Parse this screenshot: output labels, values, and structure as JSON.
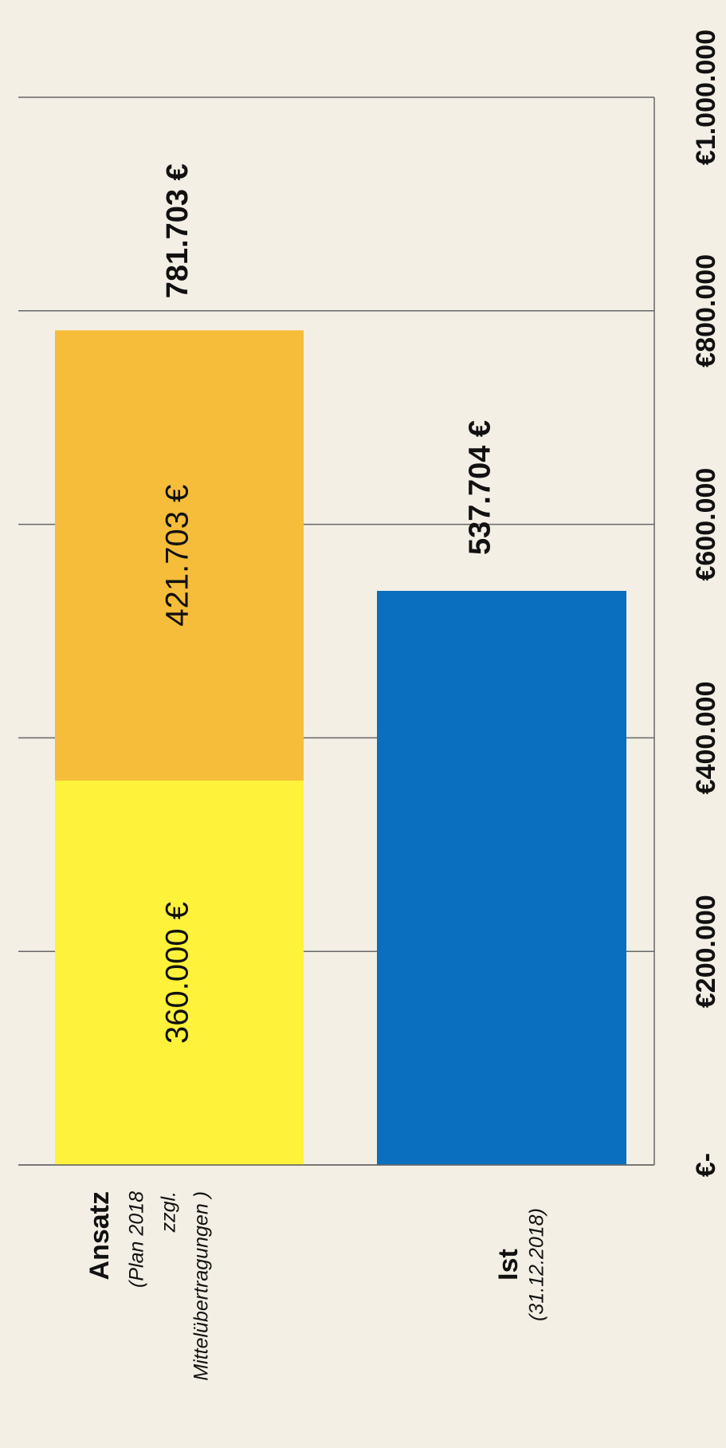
{
  "chart_data": {
    "type": "stacked_bar",
    "categories": [
      "Ansatz",
      "Ist"
    ],
    "category_sublabels": [
      [
        "(Plan 2018",
        "zzgl.",
        "Mittelübertragungen )"
      ],
      [
        "(31.12.2018)"
      ]
    ],
    "series": [
      {
        "color": "#fff23a",
        "values": [
          360000,
          null
        ],
        "value_labels": [
          "360.000 €",
          null
        ]
      },
      {
        "color": "#f6bd3a",
        "values": [
          421703,
          null
        ],
        "value_labels": [
          "421.703 €",
          null
        ]
      },
      {
        "color": "#0a6fbe",
        "values": [
          null,
          537704
        ],
        "value_labels": [
          null,
          "537.704 €"
        ]
      }
    ],
    "totals": {
      "values": [
        781703,
        null
      ],
      "value_labels": [
        "781.703 €",
        null
      ]
    },
    "ylim": [
      0,
      1000000
    ],
    "yticks": [
      {
        "value": 0,
        "label": "€-"
      },
      {
        "value": 200000,
        "label": "€200.000"
      },
      {
        "value": 400000,
        "label": "€400.000"
      },
      {
        "value": 600000,
        "label": "€600.000"
      },
      {
        "value": 800000,
        "label": "€800.000"
      },
      {
        "value": 1000000,
        "label": "€1.000.000"
      }
    ],
    "grid": true
  }
}
